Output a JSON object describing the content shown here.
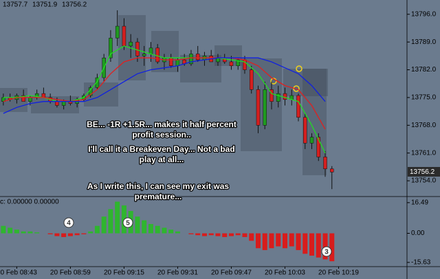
{
  "chart_data": {
    "type": "candlestick",
    "header": [
      13757.7,
      13751.9,
      13756.2
    ],
    "candles": [
      [
        13774,
        13776,
        13773,
        13775
      ],
      [
        13775,
        13776,
        13774,
        13774.5
      ],
      [
        13774.5,
        13776,
        13773.5,
        13775.5
      ],
      [
        13775.5,
        13777,
        13774,
        13774
      ],
      [
        13774,
        13775.5,
        13773,
        13775
      ],
      [
        13775,
        13777,
        13774.5,
        13776
      ],
      [
        13776,
        13777.5,
        13775,
        13775
      ],
      [
        13775,
        13776,
        13773.5,
        13774
      ],
      [
        13774,
        13775,
        13772.5,
        13773
      ],
      [
        13773,
        13774.5,
        13772,
        13774
      ],
      [
        13774,
        13775.5,
        13773,
        13773.5
      ],
      [
        13773.5,
        13775,
        13772.5,
        13774.5
      ],
      [
        13774.5,
        13776,
        13774,
        13775.5
      ],
      [
        13775.5,
        13778,
        13775,
        13777.5
      ],
      [
        13777.5,
        13781,
        13777,
        13780
      ],
      [
        13780,
        13786,
        13779,
        13785
      ],
      [
        13785,
        13792,
        13784,
        13790
      ],
      [
        13790,
        13797,
        13788,
        13793
      ],
      [
        13793,
        13795,
        13787,
        13788
      ],
      [
        13788,
        13791,
        13785,
        13789
      ],
      [
        13789,
        13790,
        13784,
        13785.5
      ],
      [
        13785.5,
        13788,
        13783,
        13786
      ],
      [
        13786,
        13789,
        13784,
        13787.5
      ],
      [
        13787.5,
        13788.5,
        13783.5,
        13784
      ],
      [
        13784,
        13786,
        13782,
        13785
      ],
      [
        13785,
        13786,
        13782.5,
        13783
      ],
      [
        13783,
        13785,
        13781.5,
        13784.5
      ],
      [
        13784.5,
        13786,
        13783,
        13783.5
      ],
      [
        13783.5,
        13787,
        13783,
        13786
      ],
      [
        13786,
        13788,
        13784,
        13784.5
      ],
      [
        13784.5,
        13786.5,
        13783,
        13785.5
      ],
      [
        13785.5,
        13787,
        13784,
        13784
      ],
      [
        13784,
        13786,
        13783,
        13785
      ],
      [
        13785,
        13786,
        13783.5,
        13784
      ],
      [
        13784,
        13785.5,
        13782,
        13783
      ],
      [
        13783,
        13785,
        13782,
        13784.5
      ],
      [
        13784.5,
        13785.5,
        13781,
        13782
      ],
      [
        13782,
        13783,
        13776,
        13777
      ],
      [
        13777,
        13778,
        13766,
        13768
      ],
      [
        13768,
        13779,
        13767,
        13777
      ],
      [
        13777,
        13779,
        13772,
        13774
      ],
      [
        13774,
        13778,
        13772.5,
        13776
      ],
      [
        13776,
        13777.5,
        13773,
        13774.5
      ],
      [
        13774.5,
        13777,
        13773,
        13775.5
      ],
      [
        13775.5,
        13776,
        13769,
        13770
      ],
      [
        13770,
        13771,
        13762,
        13763.5
      ],
      [
        13763.5,
        13766,
        13762,
        13765
      ],
      [
        13765,
        13766,
        13759,
        13760
      ],
      [
        13760,
        13761.5,
        13755,
        13757
      ],
      [
        13757,
        13757.7,
        13751.9,
        13756.2
      ]
    ],
    "up_color": "#1f9a1f",
    "down_color": "#d41f1f",
    "ylim": [
      13750.2,
      13799.6
    ],
    "yticks": [
      {
        "value": 13796,
        "label": "13796.0"
      },
      {
        "value": 13789,
        "label": "13789.0"
      },
      {
        "value": 13782,
        "label": "13782.0"
      },
      {
        "value": 13775,
        "label": "13775.0"
      },
      {
        "value": 13768,
        "label": "13768.0"
      },
      {
        "value": 13761,
        "label": "13761.0"
      },
      {
        "value": 13754,
        "label": "13754.0"
      }
    ],
    "xlim": [
      -0.5,
      60.2
    ],
    "xticks": [
      {
        "value": 2,
        "label": "20 Feb 08:43"
      },
      {
        "value": 10,
        "label": "20 Feb 08:59"
      },
      {
        "value": 18,
        "label": "20 Feb 09:15"
      },
      {
        "value": 26,
        "label": "20 Feb 09:31"
      },
      {
        "value": 34,
        "label": "20 Feb 09:47"
      },
      {
        "value": 42,
        "label": "20 Feb 10:03"
      },
      {
        "value": 50,
        "label": "20 Feb 10:19"
      }
    ],
    "ma_x": [
      0,
      2,
      4,
      6,
      8,
      10,
      12,
      14,
      16,
      18,
      20,
      22,
      24,
      26,
      28,
      30,
      32,
      34,
      36,
      38,
      40,
      42,
      44,
      46,
      48
    ],
    "series": [
      {
        "color": "#22dd22",
        "values": [
          13775,
          13775,
          13775.5,
          13775,
          13774,
          13774,
          13775,
          13779,
          13786,
          13788,
          13787,
          13786,
          13785,
          13785,
          13785,
          13785,
          13785,
          13784.5,
          13784,
          13781,
          13776,
          13775,
          13774,
          13768,
          13761
        ]
      },
      {
        "color": "#e02020",
        "values": [
          13774,
          13775,
          13775,
          13775,
          13774.5,
          13774,
          13774.5,
          13777,
          13781,
          13784,
          13785,
          13785,
          13784.5,
          13784.5,
          13785,
          13785,
          13785,
          13785,
          13784.5,
          13783,
          13780,
          13778,
          13777,
          13773,
          13767
        ]
      },
      {
        "color": "#1020e0",
        "values": [
          13771,
          13772.5,
          13773.5,
          13774,
          13774,
          13774,
          13774,
          13775,
          13777,
          13779,
          13781,
          13782,
          13782.5,
          13783,
          13784,
          13784.5,
          13785,
          13785,
          13785,
          13785,
          13784,
          13782.5,
          13781,
          13778,
          13774
        ]
      }
    ],
    "oscillator": {
      "header": "c: 0.00000 0.00000",
      "values": [
        4,
        3,
        2,
        1,
        1,
        0.5,
        0,
        -0.5,
        -1.5,
        -2,
        -1.5,
        -1,
        -0.5,
        1,
        4,
        9,
        13,
        17,
        15,
        12,
        9,
        7,
        5,
        4,
        3,
        2,
        1,
        0,
        -0.5,
        -1,
        -1.5,
        -1,
        -1.5,
        -2,
        -1.5,
        -1,
        -2,
        -4,
        -8,
        -9,
        -8,
        -7,
        -8,
        -7,
        -9,
        -11,
        -12,
        -13,
        -14,
        -15
      ],
      "up_color": "#2fb52f",
      "down_color": "#d81c1c",
      "ylim": [
        -17.9,
        19.4
      ],
      "yticks": [
        16.49,
        {
          "value": 0,
          "label": "0.00"
        },
        -15.63
      ]
    },
    "annotations": [
      {
        "lines": [
          "BE... -1R  +1.5R... makes it half percent",
          "profit session.."
        ]
      },
      {
        "lines": [
          "I'll call it a Breakeven Day... Not  a bad",
          "play at all..."
        ]
      },
      {
        "lines": [
          "As I write this, I can see my exit was",
          "premature..."
        ]
      }
    ],
    "markers": [
      "4",
      "5",
      "3"
    ]
  }
}
